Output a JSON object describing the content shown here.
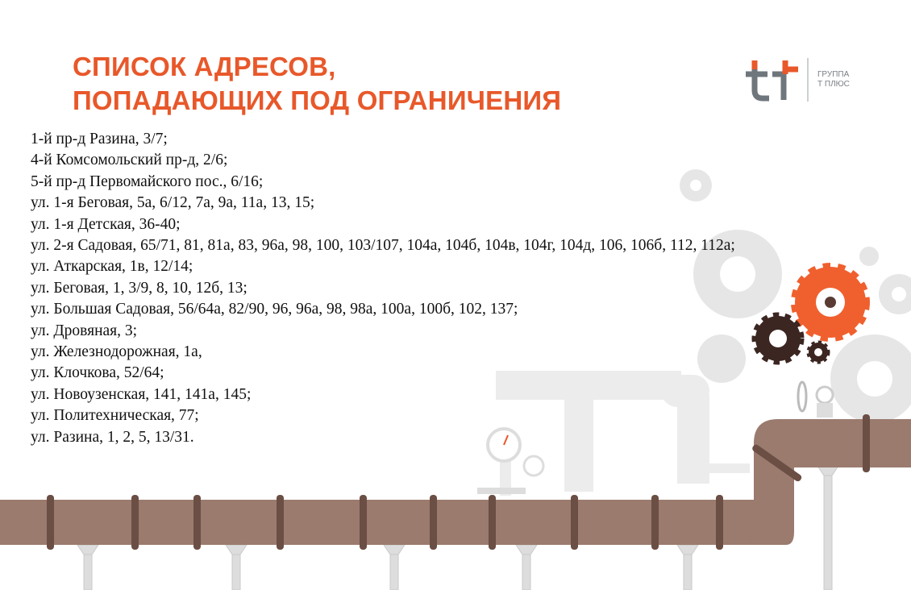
{
  "title": {
    "line1": "СПИСОК АДРЕСОВ,",
    "line2": "ПОПАДАЮЩИХ ПОД ОГРАНИЧЕНИЯ"
  },
  "logo": {
    "line1": "ГРУППА",
    "line2": "Т ПЛЮС"
  },
  "colors": {
    "accent": "#e8582a",
    "pipe": "#9b7b6e",
    "logo_gray": "#6f767c"
  },
  "addresses": [
    "1-й пр-д Разина, 3/7;",
    "4-й Комсомольский пр-д, 2/6;",
    "5-й пр-д Первомайского пос., 6/16;",
    "ул. 1-я Беговая, 5а, 6/12, 7а, 9а, 11а, 13, 15;",
    "ул. 1-я Детская, 36-40;",
    "ул. 2-я Садовая, 65/71, 81, 81а, 83, 96а, 98, 100, 103/107, 104а, 104б, 104в, 104г, 104д, 106, 106б, 112, 112а;",
    "ул. Аткарская, 1в, 12/14;",
    "ул. Беговая, 1, 3/9, 8, 10, 12б, 13;",
    "ул. Большая Садовая, 56/64а, 82/90, 96, 96а, 98, 98а, 100а, 100б, 102, 137;",
    "ул. Дровяная, 3;",
    "ул. Железнодорожная, 1а,",
    "ул. Клочкова, 52/64;",
    "ул. Новоузенская, 141, 141а, 145;",
    "ул. Политехническая, 77;",
    "ул. Разина, 1, 2, 5, 13/31."
  ]
}
